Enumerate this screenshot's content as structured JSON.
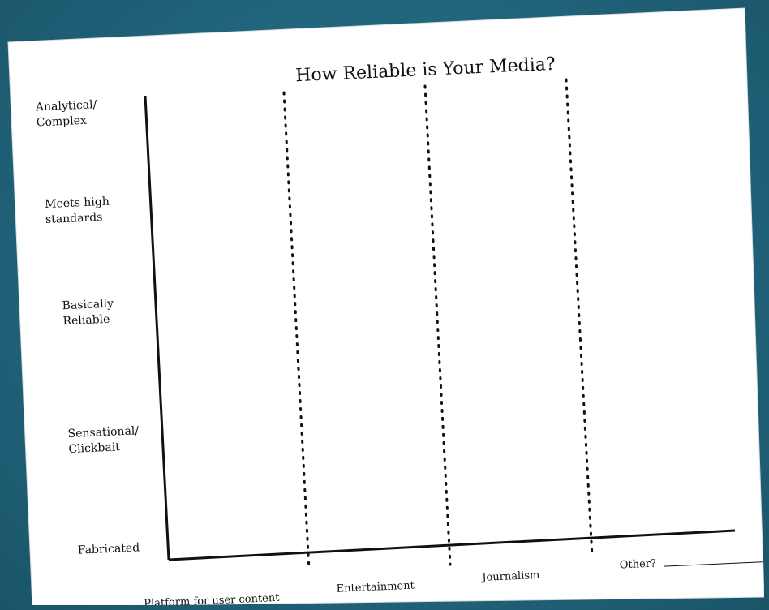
{
  "title": "How Reliable is Your Media?",
  "y_axis_labels": [
    {
      "line1": "Analytical/",
      "line2": "Complex"
    },
    {
      "line1": "Meets high",
      "line2": "standards"
    },
    {
      "line1": "Basically",
      "line2": "Reliable"
    },
    {
      "line1": "Sensational/",
      "line2": "Clickbait"
    },
    {
      "line1": "Fabricated",
      "line2": ""
    }
  ],
  "x_axis_labels": [
    "Platform for user content",
    "Entertainment",
    "Journalism",
    "Other?"
  ],
  "colors": {
    "background": "#236d85",
    "paper": "#ffffff",
    "ink": "#111111"
  }
}
